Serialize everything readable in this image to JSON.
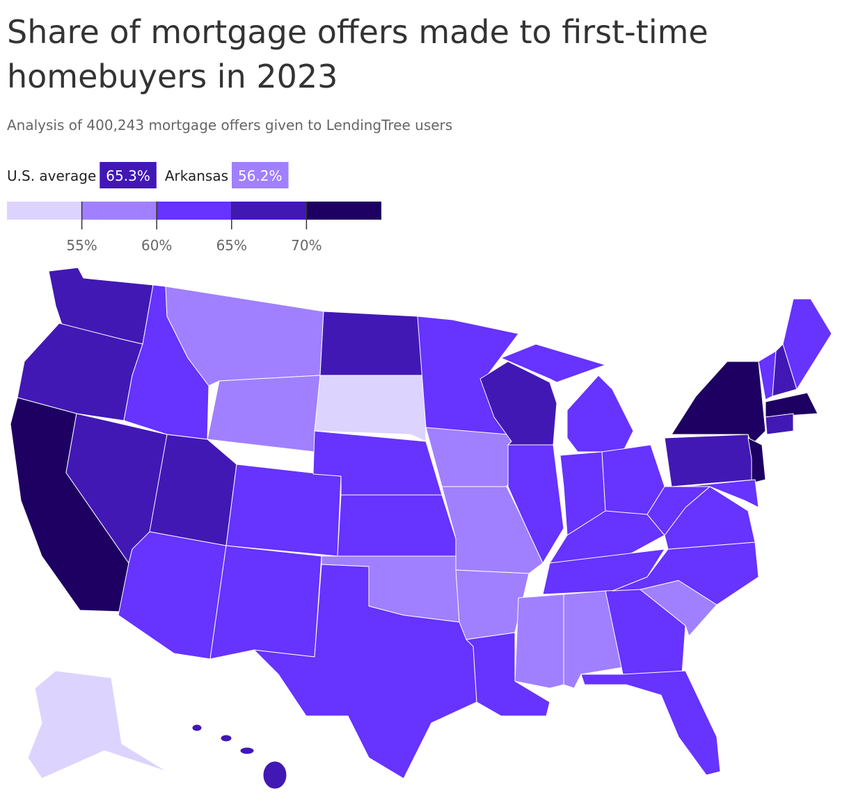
{
  "chart_data": {
    "type": "choropleth",
    "title": "Share of mortgage offers made to first-time homebuyers in 2023",
    "subtitle": "Analysis of 400,243 mortgage offers given to LendingTree users",
    "highlights": [
      {
        "label": "U.S. average",
        "value": 65.3,
        "value_label": "65.3%",
        "color": "#4218b5"
      },
      {
        "label": "Arkansas",
        "value": 56.2,
        "value_label": "56.2%",
        "color": "#a080ff"
      }
    ],
    "legend": {
      "colors": [
        "#ddd3ff",
        "#a080ff",
        "#6633ff",
        "#4218b5",
        "#1e0062"
      ],
      "xlim": [
        50,
        75
      ],
      "xticks": [
        {
          "value": 55,
          "label": "55%"
        },
        {
          "value": 60,
          "label": "60%"
        },
        {
          "value": 65,
          "label": "65%"
        },
        {
          "value": 70,
          "label": "70%"
        }
      ]
    }
  }
}
